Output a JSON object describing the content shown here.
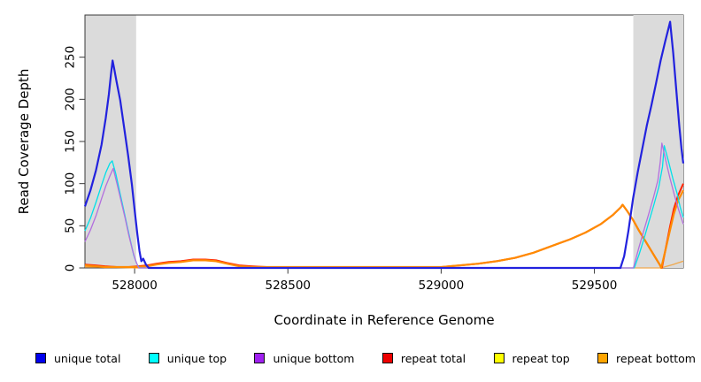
{
  "chart_data": {
    "type": "line",
    "title": "",
    "xlabel": "Coordinate in Reference Genome",
    "ylabel": "Read Coverage Depth",
    "xlim": [
      527838,
      529790
    ],
    "ylim": [
      0,
      300
    ],
    "x_ticks": [
      528000,
      528500,
      529000,
      529500
    ],
    "y_ticks": [
      0,
      50,
      100,
      150,
      200,
      250
    ],
    "grid": false,
    "legend_position": "bottom",
    "background_color": "#FFFFFF",
    "shade_color": "#DBDBDB",
    "shaded_regions": [
      {
        "x0": 527838,
        "x1": 528005
      },
      {
        "x0": 529627,
        "x1": 529790
      }
    ],
    "draw_order": [
      4,
      3,
      5,
      1,
      2,
      0
    ],
    "series": [
      {
        "name": "unique total",
        "color": "#2222DE",
        "legend_color": "#0000EE",
        "width": 2.2,
        "points": [
          [
            527838,
            73
          ],
          [
            527856,
            92
          ],
          [
            527874,
            116
          ],
          [
            527892,
            146
          ],
          [
            527906,
            178
          ],
          [
            527916,
            206
          ],
          [
            527923,
            230
          ],
          [
            527928,
            246
          ],
          [
            527933,
            237
          ],
          [
            527941,
            221
          ],
          [
            527953,
            199
          ],
          [
            527966,
            166
          ],
          [
            527979,
            133
          ],
          [
            527991,
            99
          ],
          [
            528001,
            66
          ],
          [
            528009,
            40
          ],
          [
            528016,
            20
          ],
          [
            528022,
            8
          ],
          [
            528028,
            11
          ],
          [
            528037,
            4
          ],
          [
            528046,
            0
          ],
          [
            529585,
            0
          ],
          [
            529597,
            14
          ],
          [
            529611,
            44
          ],
          [
            529626,
            82
          ],
          [
            529641,
            113
          ],
          [
            529656,
            141
          ],
          [
            529671,
            169
          ],
          [
            529686,
            193
          ],
          [
            529701,
            219
          ],
          [
            529716,
            246
          ],
          [
            529731,
            269
          ],
          [
            529741,
            283
          ],
          [
            529747,
            292
          ],
          [
            529757,
            255
          ],
          [
            529767,
            212
          ],
          [
            529777,
            168
          ],
          [
            529784,
            142
          ],
          [
            529790,
            124
          ]
        ]
      },
      {
        "name": "unique top",
        "color": "#00E0EA",
        "legend_color": "#00FFFF",
        "width": 1.3,
        "points": [
          [
            527838,
            44
          ],
          [
            527856,
            59
          ],
          [
            527874,
            78
          ],
          [
            527892,
            98
          ],
          [
            527906,
            113
          ],
          [
            527919,
            124
          ],
          [
            527927,
            127
          ],
          [
            527939,
            111
          ],
          [
            527951,
            91
          ],
          [
            527963,
            71
          ],
          [
            527975,
            51
          ],
          [
            527987,
            31
          ],
          [
            527997,
            15
          ],
          [
            528007,
            5
          ],
          [
            528015,
            0
          ],
          [
            529630,
            0
          ],
          [
            529646,
            16
          ],
          [
            529662,
            35
          ],
          [
            529678,
            55
          ],
          [
            529694,
            75
          ],
          [
            529710,
            96
          ],
          [
            529722,
            120
          ],
          [
            529728,
            145
          ],
          [
            529742,
            126
          ],
          [
            529756,
            106
          ],
          [
            529770,
            88
          ],
          [
            529780,
            72
          ],
          [
            529790,
            60
          ]
        ]
      },
      {
        "name": "unique bottom",
        "color": "#B26FDE",
        "legend_color": "#A020F0",
        "width": 1.3,
        "points": [
          [
            527838,
            31
          ],
          [
            527856,
            45
          ],
          [
            527874,
            62
          ],
          [
            527892,
            82
          ],
          [
            527906,
            97
          ],
          [
            527919,
            109
          ],
          [
            527930,
            118
          ],
          [
            527943,
            99
          ],
          [
            527956,
            79
          ],
          [
            527969,
            59
          ],
          [
            527981,
            39
          ],
          [
            527993,
            21
          ],
          [
            528003,
            9
          ],
          [
            528013,
            0
          ],
          [
            529627,
            0
          ],
          [
            529645,
            24
          ],
          [
            529661,
            44
          ],
          [
            529677,
            64
          ],
          [
            529693,
            84
          ],
          [
            529707,
            104
          ],
          [
            529715,
            126
          ],
          [
            529720,
            148
          ],
          [
            529733,
            127
          ],
          [
            529746,
            107
          ],
          [
            529759,
            89
          ],
          [
            529773,
            71
          ],
          [
            529790,
            52
          ]
        ]
      },
      {
        "name": "repeat total",
        "color": "#FF2400",
        "legend_color": "#EE0000",
        "width": 2.0,
        "points": [
          [
            527838,
            4
          ],
          [
            527872,
            3
          ],
          [
            527903,
            2
          ],
          [
            527941,
            1
          ],
          [
            527981,
            1
          ],
          [
            528011,
            2
          ],
          [
            528041,
            3
          ],
          [
            528071,
            5
          ],
          [
            528111,
            7
          ],
          [
            528151,
            8
          ],
          [
            528191,
            10
          ],
          [
            528231,
            10
          ],
          [
            528266,
            9
          ],
          [
            528301,
            6
          ],
          [
            528341,
            3
          ],
          [
            528381,
            2
          ],
          [
            528431,
            1
          ],
          [
            528531,
            1
          ],
          [
            528651,
            1
          ],
          [
            528781,
            1
          ],
          [
            528901,
            1
          ],
          [
            529001,
            1
          ],
          [
            529061,
            3
          ],
          [
            529121,
            5
          ],
          [
            529181,
            8
          ],
          [
            529241,
            12
          ],
          [
            529301,
            18
          ],
          [
            529361,
            26
          ],
          [
            529421,
            34
          ],
          [
            529471,
            42
          ],
          [
            529521,
            52
          ],
          [
            529561,
            63
          ],
          [
            529586,
            72
          ],
          [
            529592,
            75
          ],
          [
            529606,
            68
          ],
          [
            529626,
            57
          ],
          [
            529646,
            44
          ],
          [
            529666,
            32
          ],
          [
            529686,
            20
          ],
          [
            529701,
            11
          ],
          [
            529713,
            4
          ],
          [
            529720,
            0
          ],
          [
            529733,
            24
          ],
          [
            529746,
            48
          ],
          [
            529759,
            70
          ],
          [
            529773,
            86
          ],
          [
            529790,
            100
          ]
        ]
      },
      {
        "name": "repeat top",
        "color": "#F0A84C",
        "legend_color": "#FFFF00",
        "width": 1.3,
        "points": [
          [
            527838,
            1
          ],
          [
            527903,
            1
          ],
          [
            528003,
            0
          ],
          [
            528503,
            0
          ],
          [
            529003,
            0
          ],
          [
            529503,
            0
          ],
          [
            529703,
            0
          ],
          [
            529718,
            0
          ],
          [
            529736,
            2
          ],
          [
            529756,
            4
          ],
          [
            529773,
            6
          ],
          [
            529790,
            8
          ]
        ]
      },
      {
        "name": "repeat bottom",
        "color": "#FF8A00",
        "legend_color": "#FFA500",
        "width": 2.2,
        "points": [
          [
            527838,
            3
          ],
          [
            527872,
            2
          ],
          [
            527903,
            1
          ],
          [
            527941,
            1
          ],
          [
            527981,
            1
          ],
          [
            528011,
            1
          ],
          [
            528041,
            2
          ],
          [
            528071,
            4
          ],
          [
            528111,
            6
          ],
          [
            528151,
            7
          ],
          [
            528191,
            9
          ],
          [
            528231,
            9
          ],
          [
            528266,
            8
          ],
          [
            528301,
            5
          ],
          [
            528341,
            2
          ],
          [
            528381,
            1
          ],
          [
            528431,
            1
          ],
          [
            528531,
            1
          ],
          [
            528651,
            1
          ],
          [
            528781,
            1
          ],
          [
            528901,
            1
          ],
          [
            529001,
            1
          ],
          [
            529061,
            3
          ],
          [
            529121,
            5
          ],
          [
            529181,
            8
          ],
          [
            529241,
            12
          ],
          [
            529301,
            18
          ],
          [
            529361,
            26
          ],
          [
            529421,
            34
          ],
          [
            529471,
            42
          ],
          [
            529521,
            52
          ],
          [
            529561,
            63
          ],
          [
            529586,
            72
          ],
          [
            529592,
            75
          ],
          [
            529606,
            68
          ],
          [
            529626,
            57
          ],
          [
            529646,
            44
          ],
          [
            529666,
            32
          ],
          [
            529686,
            20
          ],
          [
            529701,
            11
          ],
          [
            529713,
            4
          ],
          [
            529718,
            0
          ],
          [
            529731,
            20
          ],
          [
            529746,
            44
          ],
          [
            529759,
            64
          ],
          [
            529773,
            80
          ],
          [
            529790,
            92
          ]
        ]
      }
    ]
  },
  "legend": {
    "items": [
      {
        "label": "unique total",
        "color": "#0000EE"
      },
      {
        "label": "unique top",
        "color": "#00FFFF"
      },
      {
        "label": "unique bottom",
        "color": "#A020F0"
      },
      {
        "label": "repeat total",
        "color": "#EE0000"
      },
      {
        "label": "repeat top",
        "color": "#FFFF00"
      },
      {
        "label": "repeat bottom",
        "color": "#FFA500"
      }
    ]
  }
}
